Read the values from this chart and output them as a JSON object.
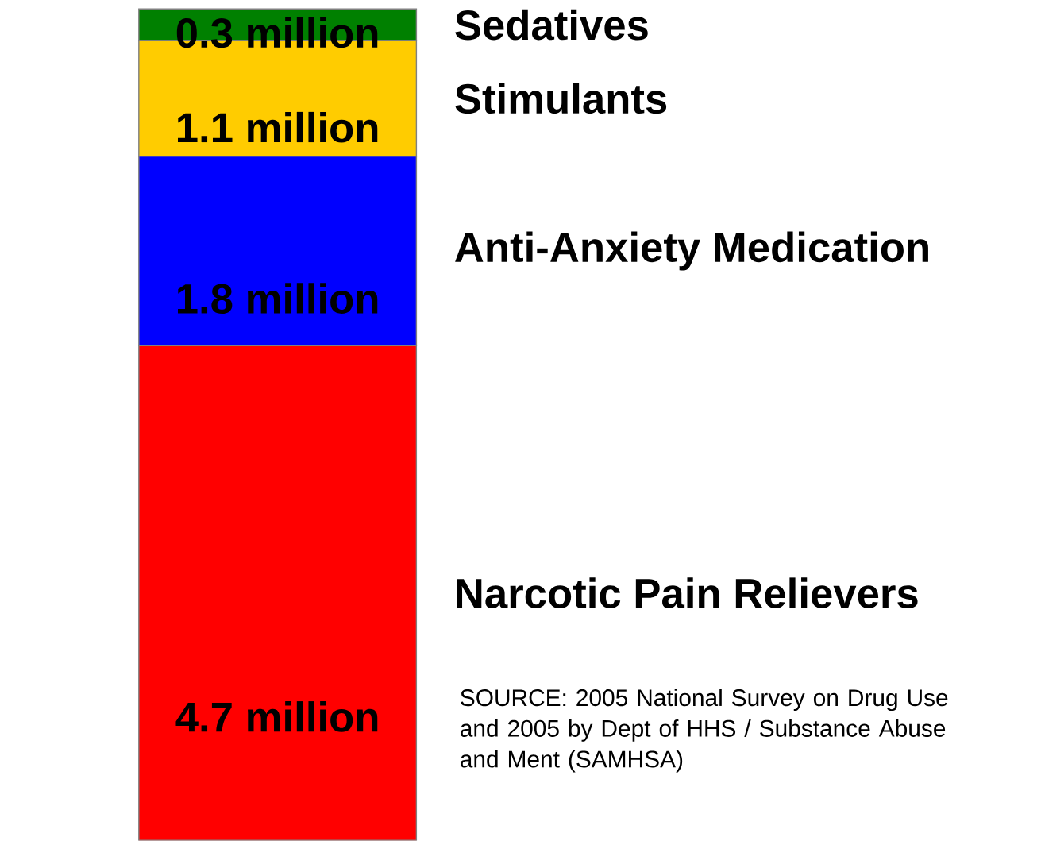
{
  "chart_data": {
    "type": "bar",
    "stacked": true,
    "categories": [
      null
    ],
    "series": [
      {
        "name": "Narcotic Pain Relievers",
        "color": "#ff0000",
        "values": [
          4.7
        ],
        "value_labels": [
          "4.7 million"
        ]
      },
      {
        "name": "Anti-Anxiety Medication",
        "color": "#0000ff",
        "values": [
          1.8
        ],
        "value_labels": [
          "1.8 million"
        ]
      },
      {
        "name": "Stimulants",
        "color": "#ffcc00",
        "values": [
          1.1
        ],
        "value_labels": [
          "1.1 million"
        ]
      },
      {
        "name": "Sedatives",
        "color": "#008000",
        "values": [
          0.3
        ],
        "value_labels": [
          "0.3 million"
        ]
      }
    ],
    "annotations": [
      "SOURCE: 2005 National Survey on Drug Use and 2005 by Dept of HHS / Substance Abuse and Ment (SAMHSA)"
    ]
  }
}
